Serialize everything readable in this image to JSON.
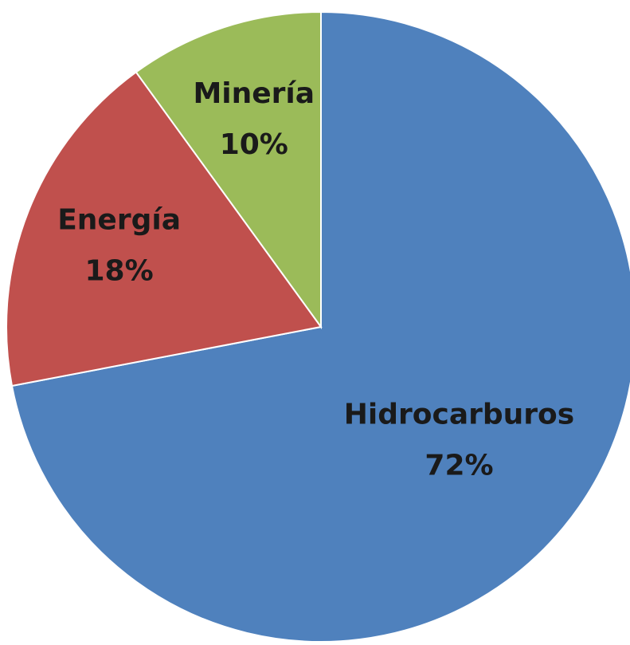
{
  "chart_data": {
    "type": "pie",
    "categories": [
      "Hidrocarburos",
      "Energía",
      "Minería"
    ],
    "values": [
      72,
      18,
      10
    ],
    "value_labels": [
      "72%",
      "18%",
      "10%"
    ],
    "colors": [
      "#4f81bd",
      "#c0504d",
      "#9bbb59"
    ],
    "start_angle": 0,
    "direction": "clockwise"
  }
}
